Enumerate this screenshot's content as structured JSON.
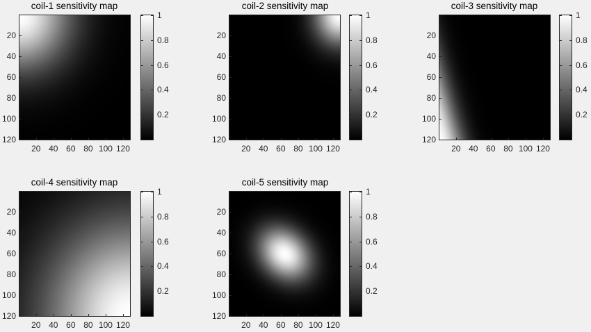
{
  "chart_data": [
    {
      "type": "heatmap",
      "title": "coil-1 sensitivity map",
      "xlabel": "",
      "ylabel": "",
      "xlim": [
        1,
        128
      ],
      "ylim": [
        1,
        120
      ],
      "x_ticks": [
        20,
        40,
        60,
        80,
        100,
        120
      ],
      "y_ticks": [
        20,
        40,
        60,
        80,
        100,
        120
      ],
      "colormap": "gray",
      "clim": [
        0,
        1
      ],
      "colorbar_ticks": [
        0.2,
        0.4,
        0.6,
        0.8,
        1
      ],
      "peak": {
        "x": 1,
        "y": 1,
        "value": 1
      },
      "falloff": "radial from top-left corner, ~0.2 at x=60,y=60"
    },
    {
      "type": "heatmap",
      "title": "coil-2 sensitivity map",
      "xlabel": "",
      "ylabel": "",
      "xlim": [
        1,
        128
      ],
      "ylim": [
        1,
        120
      ],
      "x_ticks": [
        20,
        40,
        60,
        80,
        100,
        120
      ],
      "y_ticks": [
        20,
        40,
        60,
        80,
        100,
        120
      ],
      "colormap": "gray",
      "clim": [
        0,
        1
      ],
      "colorbar_ticks": [
        0.2,
        0.4,
        0.6,
        0.8,
        1
      ],
      "peak": {
        "x": 128,
        "y": 1,
        "value": 1
      },
      "falloff": "radial from top-right corner, ~0 beyond 40 units"
    },
    {
      "type": "heatmap",
      "title": "coil-3 sensitivity map",
      "xlabel": "",
      "ylabel": "",
      "xlim": [
        1,
        128
      ],
      "ylim": [
        1,
        120
      ],
      "x_ticks": [
        20,
        40,
        60,
        80,
        100,
        120
      ],
      "y_ticks": [
        20,
        40,
        60,
        80,
        100,
        120
      ],
      "colormap": "gray",
      "clim": [
        0,
        1
      ],
      "colorbar_ticks": [
        0.2,
        0.4,
        0.6,
        0.8,
        1
      ],
      "peak": {
        "x": 1,
        "y": 120,
        "value": 1
      },
      "falloff": "strip along left edge, strongest at bottom-left"
    },
    {
      "type": "heatmap",
      "title": "coil-4 sensitivity map",
      "xlabel": "",
      "ylabel": "",
      "xlim": [
        1,
        128
      ],
      "ylim": [
        1,
        120
      ],
      "x_ticks": [
        20,
        40,
        60,
        80,
        100,
        120
      ],
      "y_ticks": [
        20,
        40,
        60,
        80,
        100,
        120
      ],
      "colormap": "gray",
      "clim": [
        0,
        1
      ],
      "colorbar_ticks": [
        0.2,
        0.4,
        0.6,
        0.8,
        1
      ],
      "peak": {
        "x": 128,
        "y": 120,
        "value": 1
      },
      "falloff": "broad radial from bottom-right corner"
    },
    {
      "type": "heatmap",
      "title": "coil-5 sensitivity map",
      "xlabel": "",
      "ylabel": "",
      "xlim": [
        1,
        128
      ],
      "ylim": [
        1,
        120
      ],
      "x_ticks": [
        20,
        40,
        60,
        80,
        100,
        120
      ],
      "y_ticks": [
        20,
        40,
        60,
        80,
        100,
        120
      ],
      "colormap": "gray",
      "clim": [
        0,
        1
      ],
      "colorbar_ticks": [
        0.2,
        0.4,
        0.6,
        0.8,
        1
      ],
      "peak": {
        "x": 64,
        "y": 64,
        "value": 1
      },
      "falloff": "elliptical gaussian centered, tilted"
    }
  ]
}
